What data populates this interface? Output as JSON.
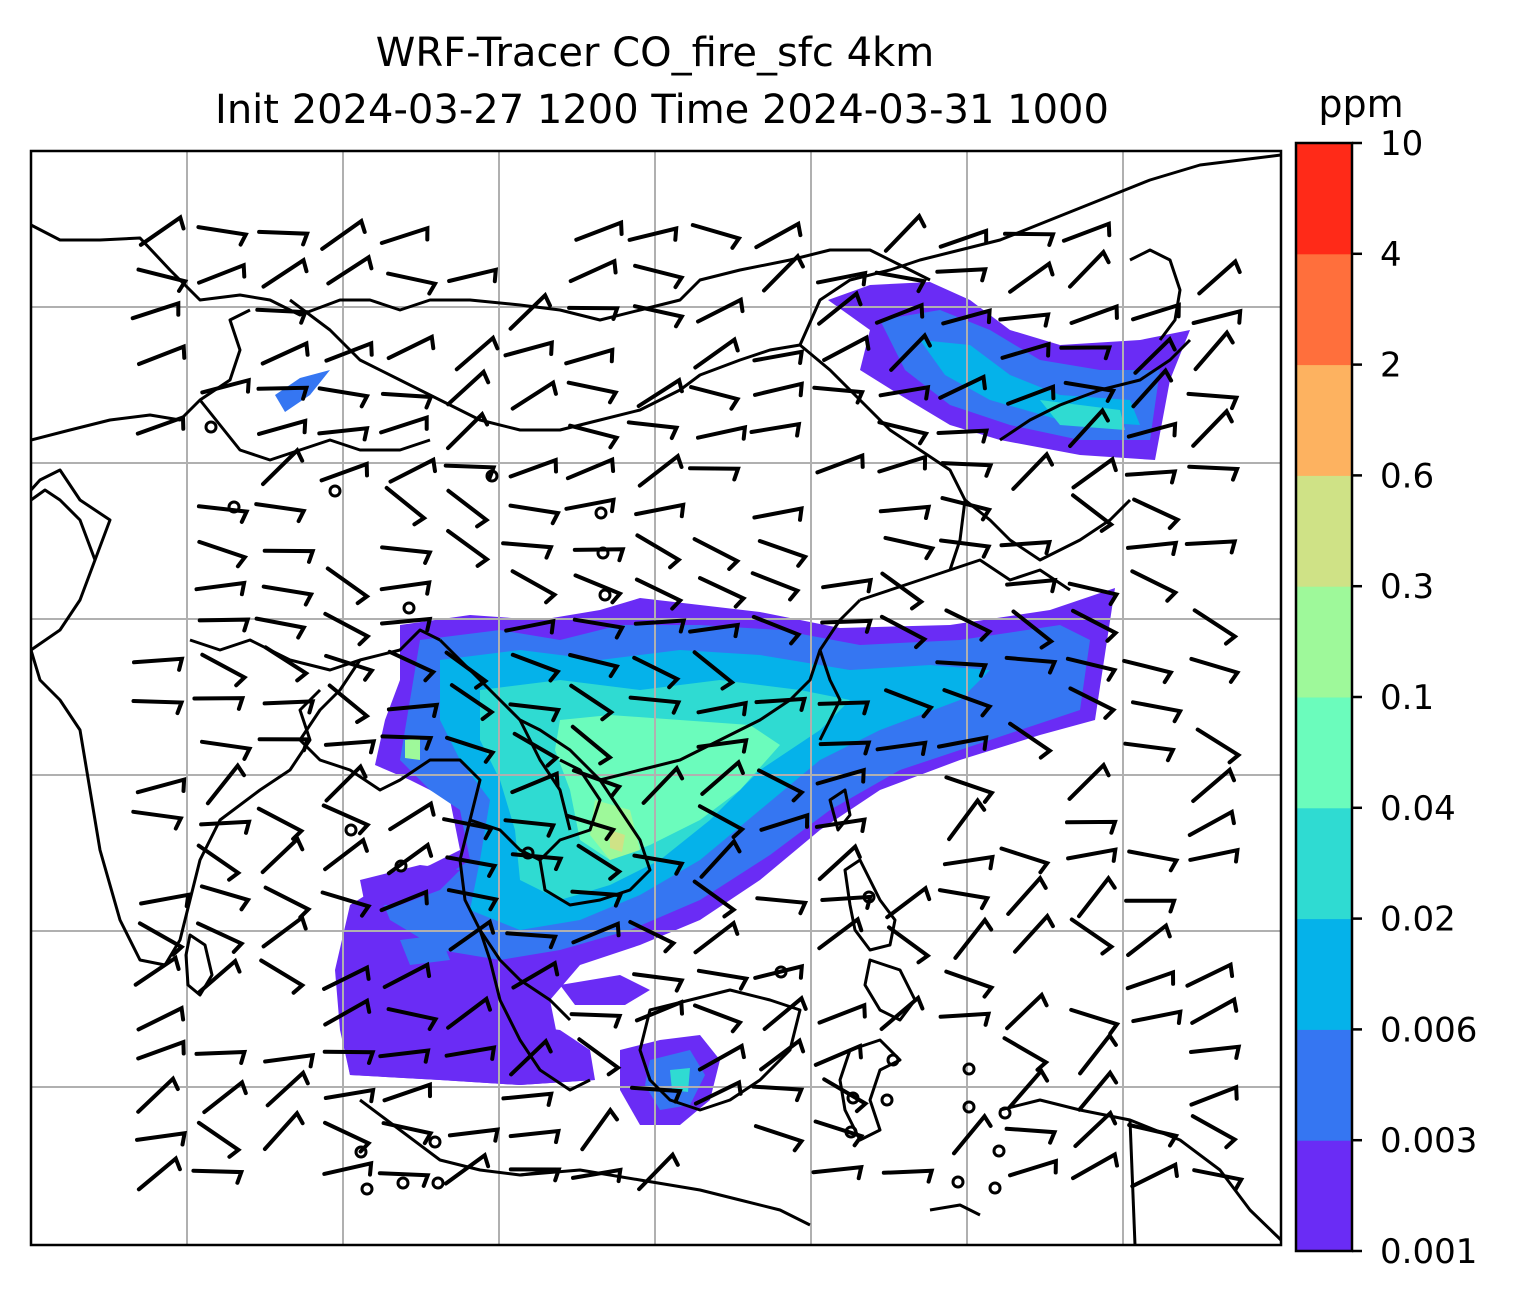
{
  "title_line1": "WRF-Tracer CO_fire_sfc 4km",
  "title_line2": "Init 2024-03-27 1200 Time 2024-03-31 1000",
  "colorbar": {
    "unit": "ppm",
    "levels": [
      "0.001",
      "0.003",
      "0.006",
      "0.02",
      "0.04",
      "0.1",
      "0.3",
      "0.6",
      "2",
      "4",
      "10"
    ],
    "colors": [
      "#6a2cf5",
      "#3576f2",
      "#05b2ea",
      "#2fdbd2",
      "#6bfcbc",
      "#9ef99a",
      "#cfe286",
      "#fdb260",
      "#ff6f3c",
      "#ff2a18"
    ]
  },
  "map": {
    "gridlines": true,
    "features": [
      "coastlines",
      "country-borders",
      "wind-barbs",
      "co-fire-tracer-field"
    ]
  }
}
